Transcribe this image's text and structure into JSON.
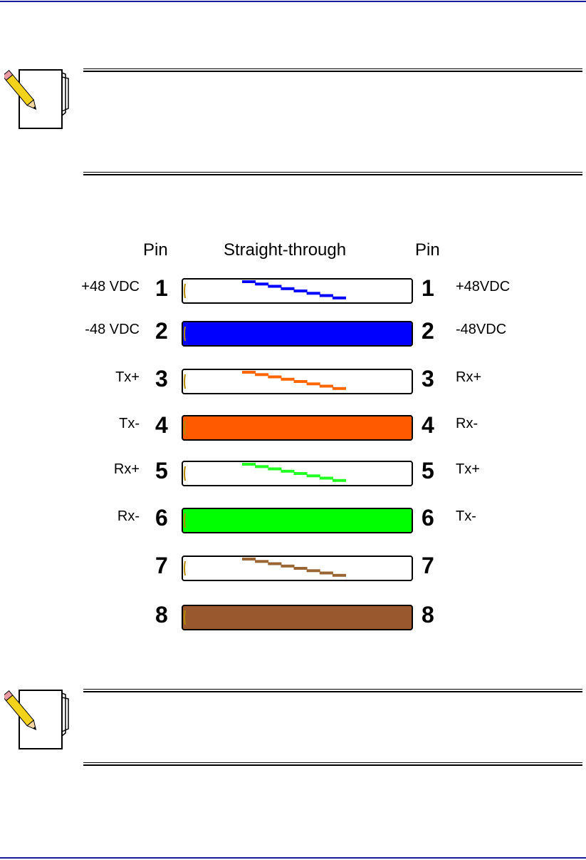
{
  "diagram": {
    "header": {
      "pin_left": "Pin",
      "title": "Straight-through",
      "pin_right": "Pin"
    },
    "rows": [
      {
        "left_signal": "+48 VDC",
        "left_pin": "1",
        "right_pin": "1",
        "right_signal": "+48VDC",
        "color": "#0000ff",
        "style": "stripe"
      },
      {
        "left_signal": "-48 VDC",
        "left_pin": "2",
        "right_pin": "2",
        "right_signal": "-48VDC",
        "color": "#0000ff",
        "style": "solid"
      },
      {
        "left_signal": "Tx+",
        "left_pin": "3",
        "right_pin": "3",
        "right_signal": "Rx+",
        "color": "#ff6600",
        "style": "stripe"
      },
      {
        "left_signal": "Tx-",
        "left_pin": "4",
        "right_pin": "4",
        "right_signal": "Rx-",
        "color": "#ff5a00",
        "style": "solid"
      },
      {
        "left_signal": "Rx+",
        "left_pin": "5",
        "right_pin": "5",
        "right_signal": "Tx+",
        "color": "#22ff22",
        "style": "stripe"
      },
      {
        "left_signal": "Rx-",
        "left_pin": "6",
        "right_pin": "6",
        "right_signal": "Tx-",
        "color": "#00ff00",
        "style": "solid"
      },
      {
        "left_signal": "",
        "left_pin": "7",
        "right_pin": "7",
        "right_signal": "",
        "color": "#996633",
        "style": "stripe"
      },
      {
        "left_signal": "",
        "left_pin": "8",
        "right_pin": "8",
        "right_signal": "",
        "color": "#99582e",
        "style": "solid"
      }
    ]
  },
  "icons": [
    "note-pad-pencil-icon",
    "note-pad-pencil-icon"
  ],
  "colors": {
    "rule": "#1a1a9c"
  }
}
